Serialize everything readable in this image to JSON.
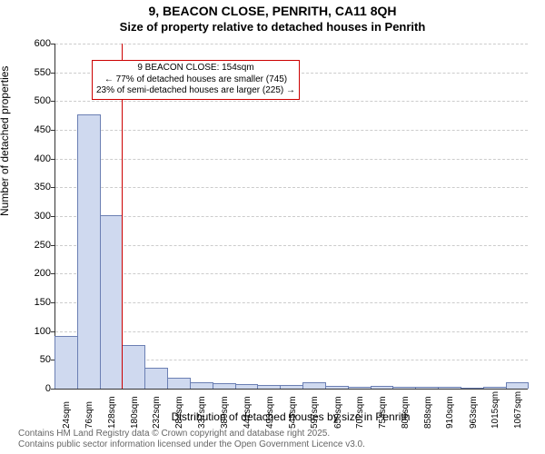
{
  "header": {
    "title_line1": "9, BEACON CLOSE, PENRITH, CA11 8QH",
    "title_line2": "Size of property relative to detached houses in Penrith"
  },
  "axes": {
    "ylabel": "Number of detached properties",
    "xlabel": "Distribution of detached houses by size in Penrith",
    "label_fontsize": 12
  },
  "chart": {
    "type": "histogram",
    "ylim": [
      0,
      600
    ],
    "ytick_step": 50,
    "bar_fill": "#cfd9ef",
    "bar_stroke": "#6b7fb3",
    "background_color": "#ffffff",
    "grid_color": "#cccccc",
    "bin_width_sqm": 52,
    "x_start_sqm": 0,
    "x_end_sqm": 1092,
    "x_tick_labels": [
      "24sqm",
      "76sqm",
      "128sqm",
      "180sqm",
      "232sqm",
      "284sqm",
      "337sqm",
      "389sqm",
      "441sqm",
      "493sqm",
      "545sqm",
      "597sqm",
      "650sqm",
      "702sqm",
      "754sqm",
      "806sqm",
      "858sqm",
      "910sqm",
      "963sqm",
      "1015sqm",
      "1067sqm"
    ],
    "x_tick_centers_sqm": [
      24,
      76,
      128,
      180,
      232,
      284,
      337,
      389,
      441,
      493,
      545,
      597,
      650,
      702,
      754,
      806,
      858,
      910,
      963,
      1015,
      1067
    ],
    "values": [
      90,
      475,
      300,
      75,
      35,
      18,
      10,
      8,
      6,
      5,
      4,
      10,
      3,
      2,
      3,
      2,
      2,
      2,
      0,
      2,
      10
    ]
  },
  "marker": {
    "value_sqm": 154,
    "color": "#cc0000"
  },
  "annotation": {
    "line1": "9 BEACON CLOSE: 154sqm",
    "line2": "← 77% of detached houses are smaller (745)",
    "line3": "23% of semi-detached houses are larger (225) →",
    "border_color": "#cc0000",
    "fontsize": 10
  },
  "footer": {
    "line1": "Contains HM Land Registry data © Crown copyright and database right 2025.",
    "line2": "Contains public sector information licensed under the Open Government Licence v3.0."
  }
}
